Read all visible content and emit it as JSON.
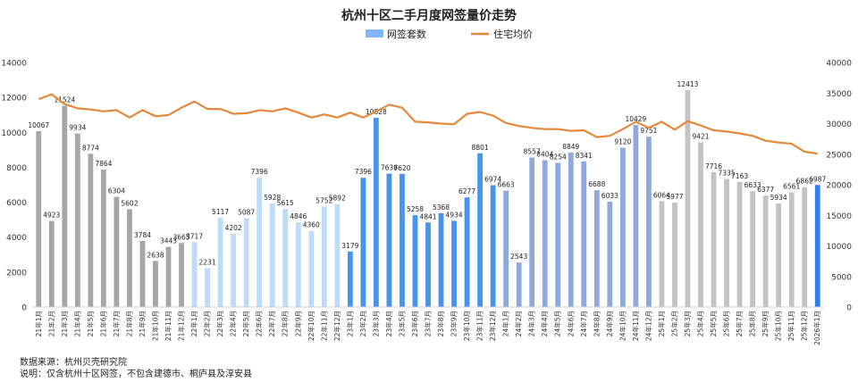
{
  "chart_data": {
    "type": "bar",
    "title": "杭州十区二手月度网签量价走势",
    "legend_position": "top",
    "grid": false,
    "left_axis": {
      "min": 0,
      "max": 14000,
      "ticks": [
        "0",
        "2000",
        "4000",
        "6000",
        "8000",
        "10000",
        "12000",
        "14000"
      ]
    },
    "right_axis": {
      "min": 0,
      "max": 40000,
      "ticks": [
        "0",
        "5000",
        "10000",
        "15000",
        "20000",
        "25000",
        "30000",
        "35000",
        "40000"
      ]
    },
    "categories": [
      "21年1月",
      "21年2月",
      "21年3月",
      "21年4月",
      "21年5月",
      "21年6月",
      "21年7月",
      "21年8月",
      "21年9月",
      "21年10月",
      "21年11月",
      "21年12月",
      "22年1月",
      "22年2月",
      "22年3月",
      "22年4月",
      "22年5月",
      "22年6月",
      "22年7月",
      "22年8月",
      "22年9月",
      "22年10月",
      "22年11月",
      "22年12月",
      "23年1月",
      "23年2月",
      "23年3月",
      "23年4月",
      "23年5月",
      "23年6月",
      "23年7月",
      "23年8月",
      "23年9月",
      "23年10月",
      "23年11月",
      "23年12月",
      "24年1月",
      "24年2月",
      "24年3月",
      "24年4月",
      "24年5月",
      "24年6月",
      "24年7月",
      "24年8月",
      "24年9月",
      "24年10月",
      "24年11月",
      "24年12月",
      "25年1月",
      "25年2月",
      "25年3月",
      "25年4月",
      "25年5月",
      "25年6月",
      "25年7月",
      "25年8月",
      "25年9月",
      "25年10月",
      "25年11月",
      "25年12月",
      "2026年1月"
    ],
    "series": [
      {
        "name": "网签套数",
        "type": "bar",
        "axis": "left",
        "values": [
          10067,
          4923,
          11524,
          9934,
          8774,
          7864,
          6304,
          5602,
          3784,
          2638,
          3443,
          3665,
          3717,
          2231,
          5117,
          4202,
          5087,
          7396,
          5928,
          5615,
          4846,
          4360,
          5752,
          5892,
          3179,
          7396,
          10828,
          7636,
          7620,
          5258,
          4841,
          5368,
          4934,
          6277,
          8801,
          6974,
          6663,
          2543,
          8557,
          8404,
          8254,
          8849,
          8341,
          6688,
          6033,
          9120,
          10429,
          9751,
          6064,
          5977,
          12413,
          9421,
          7716,
          7335,
          7163,
          6633,
          6377,
          5934,
          6561,
          6862,
          6987
        ],
        "colors": [
          "#a6a6a6",
          "#a6a6a6",
          "#a6a6a6",
          "#a6a6a6",
          "#a6a6a6",
          "#a6a6a6",
          "#a6a6a6",
          "#a6a6a6",
          "#a6a6a6",
          "#a6a6a6",
          "#a6a6a6",
          "#a6a6a6",
          "#bddcf8",
          "#bddcf8",
          "#bddcf8",
          "#bddcf8",
          "#bddcf8",
          "#bddcf8",
          "#bddcf8",
          "#bddcf8",
          "#bddcf8",
          "#bddcf8",
          "#bddcf8",
          "#bddcf8",
          "#4694ec",
          "#4694ec",
          "#4694ec",
          "#4694ec",
          "#4694ec",
          "#4694ec",
          "#4694ec",
          "#4694ec",
          "#4694ec",
          "#4694ec",
          "#4694ec",
          "#4694ec",
          "#8ea9db",
          "#8ea9db",
          "#8ea9db",
          "#8ea9db",
          "#8ea9db",
          "#8ea9db",
          "#8ea9db",
          "#8ea9db",
          "#8ea9db",
          "#8ea9db",
          "#8ea9db",
          "#8ea9db",
          "#c3c3c3",
          "#c3c3c3",
          "#c3c3c3",
          "#c3c3c3",
          "#c3c3c3",
          "#c3c3c3",
          "#c3c3c3",
          "#c3c3c3",
          "#c3c3c3",
          "#c3c3c3",
          "#c3c3c3",
          "#c3c3c3",
          "#2f7ff0"
        ],
        "legend_color": "#7fb8f5"
      },
      {
        "name": "住宅均价",
        "type": "line",
        "axis": "right",
        "color": "#e6883a",
        "values": [
          34000,
          34800,
          33200,
          32500,
          32300,
          32000,
          32200,
          31000,
          32200,
          31200,
          31400,
          32600,
          33600,
          32400,
          32400,
          31600,
          31700,
          32200,
          32000,
          32500,
          31800,
          31000,
          31500,
          31000,
          31800,
          31000,
          32000,
          33100,
          32600,
          30300,
          30200,
          30000,
          29900,
          31600,
          31900,
          31300,
          30100,
          29600,
          29300,
          29100,
          29100,
          28800,
          28900,
          27800,
          28000,
          29100,
          30300,
          29300,
          30300,
          29000,
          30400,
          29700,
          28900,
          28700,
          28400,
          28000,
          27200,
          26900,
          26700,
          25400,
          25100
        ]
      }
    ]
  },
  "footer": {
    "source": "数据来源：杭州贝壳研究院",
    "note": "说明：仅含杭州十区网签，不包含建德市、桐庐县及淳安县"
  }
}
